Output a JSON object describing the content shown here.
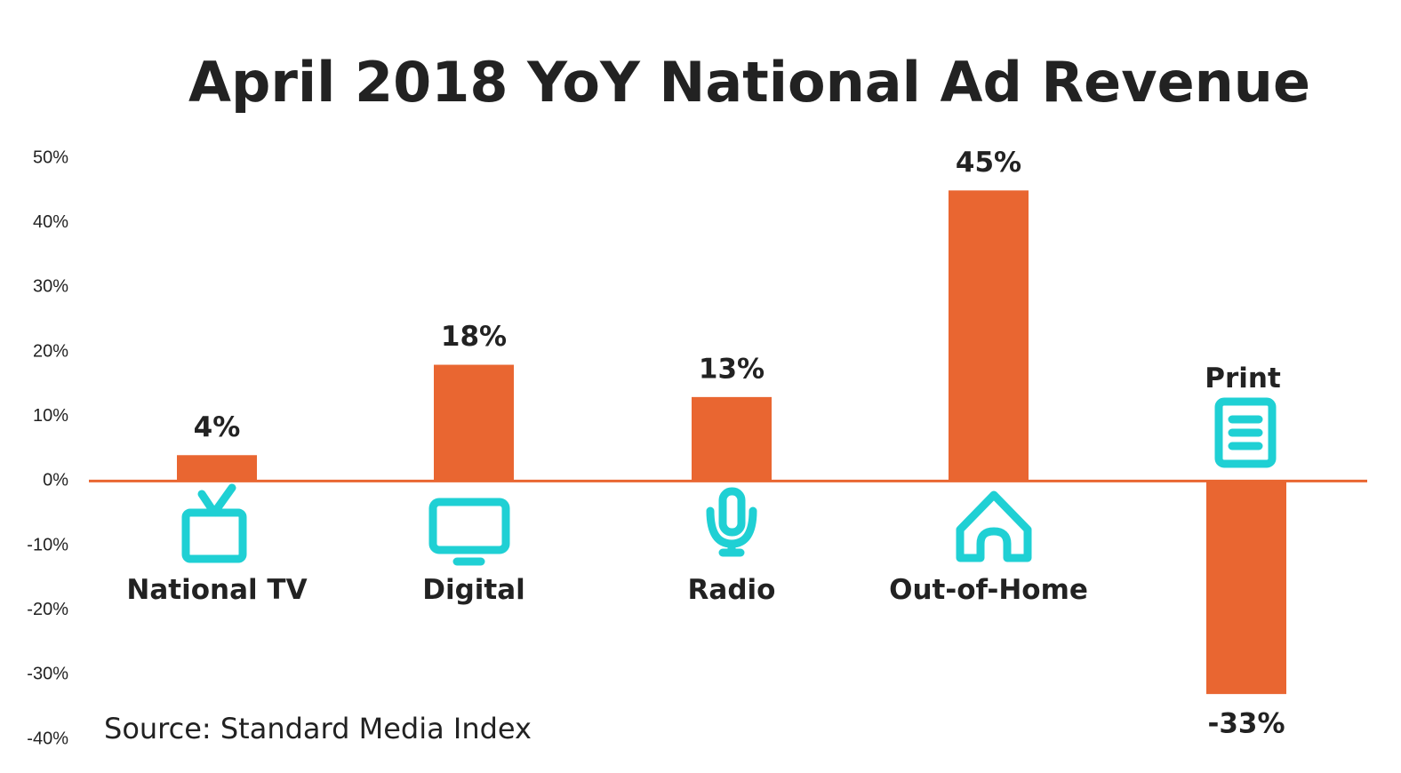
{
  "chart_data": {
    "type": "bar",
    "title": "April 2018 YoY National Ad Revenue",
    "source": "Source: Standard Media Index",
    "categories": [
      "National TV",
      "Digital",
      "Radio",
      "Out-of-Home",
      "Print"
    ],
    "values": [
      4,
      18,
      13,
      45,
      -33
    ],
    "value_labels": [
      "4%",
      "18%",
      "13%",
      "45%",
      "-33%"
    ],
    "color": "#e96631",
    "ylim": [
      -40,
      50
    ],
    "yticks": [
      {
        "value": -40,
        "label": "-40%"
      },
      {
        "value": -30,
        "label": "-30%"
      },
      {
        "value": -20,
        "label": "-20%"
      },
      {
        "value": -10,
        "label": "-10%"
      },
      {
        "value": 0,
        "label": "0%"
      },
      {
        "value": 10,
        "label": "10%"
      },
      {
        "value": 20,
        "label": "20%"
      },
      {
        "value": 30,
        "label": "30%"
      },
      {
        "value": 40,
        "label": "40%"
      },
      {
        "value": 50,
        "label": "50%"
      }
    ],
    "grid": false
  }
}
